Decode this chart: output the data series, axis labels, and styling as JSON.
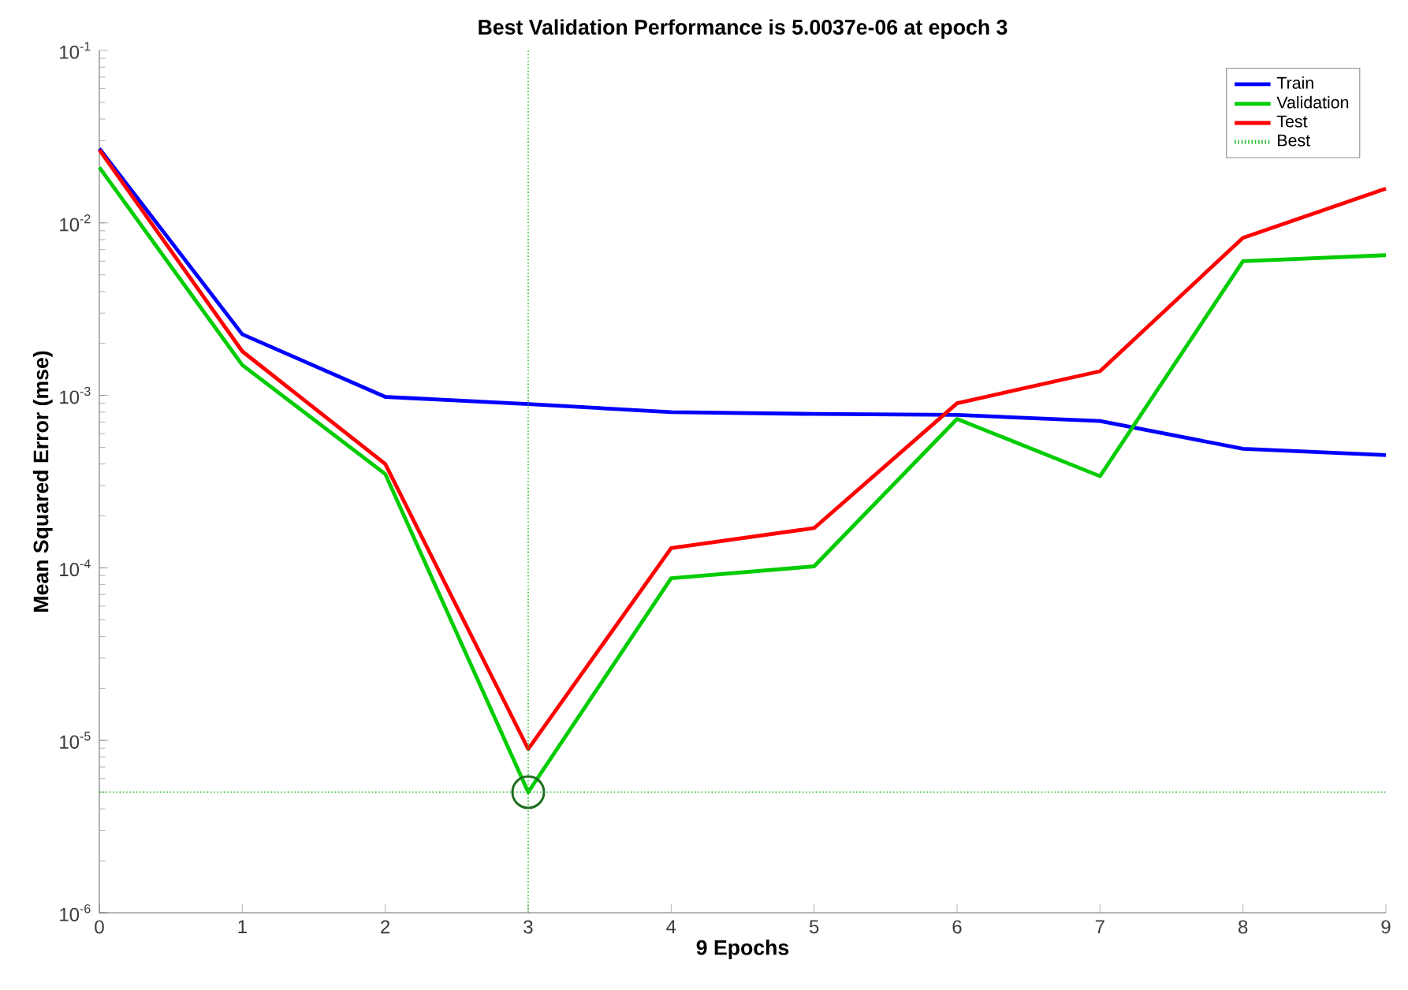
{
  "chart_data": {
    "type": "line",
    "title": "Best Validation Performance is 5.0037e-06 at epoch 3",
    "xlabel": "9 Epochs",
    "ylabel": "Mean Squared Error  (mse)",
    "x": [
      0,
      1,
      2,
      3,
      4,
      5,
      6,
      7,
      8,
      9
    ],
    "series": [
      {
        "name": "Train",
        "color": "#0000ff",
        "values": [
          0.027,
          0.00226,
          0.00098,
          0.00089,
          0.0008,
          0.00078,
          0.00077,
          0.00071,
          0.00049,
          0.00045
        ]
      },
      {
        "name": "Validation",
        "color": "#00cc00",
        "values": [
          0.021,
          0.0015,
          0.00035,
          5.0037e-06,
          8.7e-05,
          0.000102,
          0.00073,
          0.00034,
          0.006,
          0.0065
        ]
      },
      {
        "name": "Test",
        "color": "#ff0000",
        "values": [
          0.0265,
          0.0018,
          0.0004,
          8.9e-06,
          0.00013,
          0.00017,
          0.0009,
          0.00138,
          0.0082,
          0.0158
        ]
      },
      {
        "type": "scatter",
        "marker": "circle",
        "color": "#1e6e1e",
        "x": [
          3
        ],
        "values": [
          5.0037e-06
        ]
      }
    ],
    "log": "y",
    "xlim": [
      0,
      9
    ],
    "xticks": [
      0,
      1,
      2,
      3,
      4,
      5,
      6,
      7,
      8,
      9
    ],
    "ylim": [
      1e-06,
      0.1
    ],
    "yticks": [
      {
        "value": 1e-06,
        "label": "10$^{-6}$"
      },
      {
        "value": 1e-05,
        "label": "10$^{-5}$"
      },
      {
        "value": 0.0001,
        "label": "10$^{-4}$"
      },
      {
        "value": 0.001,
        "label": "10$^{-3}$"
      },
      {
        "value": 0.01,
        "label": "10$^{-2}$"
      },
      {
        "value": 0.1,
        "label": "10$^{-1}$"
      }
    ],
    "ref_lines": [
      {
        "axis": "y",
        "value": 5.0037e-06,
        "label": "Best",
        "color": "#33bb33",
        "line_style": "dotted"
      },
      {
        "axis": "x",
        "value": 3,
        "color": "#33bb33",
        "line_style": "dotted"
      }
    ],
    "grid": false,
    "legend": "top right",
    "line_style": "solid"
  }
}
